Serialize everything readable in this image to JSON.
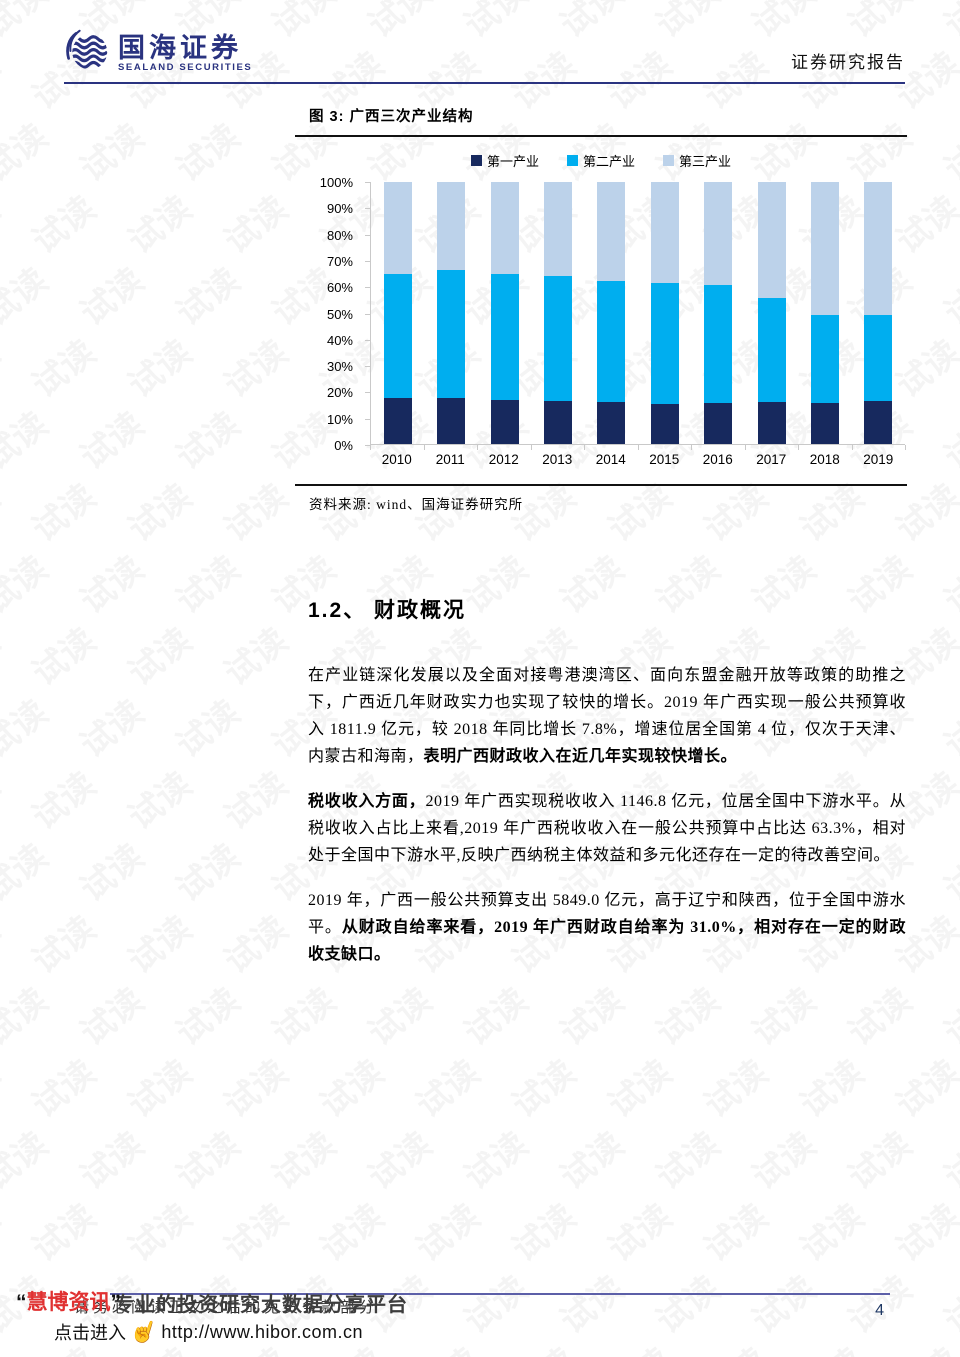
{
  "watermark": {
    "text": "试读"
  },
  "header": {
    "brand_cn": "国海证券",
    "brand_en": "SEALAND SECURITIES",
    "report_type": "证券研究报告"
  },
  "figure": {
    "title": "图 3: 广西三次产业结构",
    "source": "资料来源: wind、国海证券研究所"
  },
  "chart_data": {
    "type": "bar",
    "stacked": true,
    "unit": "percent",
    "title": "广西三次产业结构",
    "categories": [
      "2010",
      "2011",
      "2012",
      "2013",
      "2014",
      "2015",
      "2016",
      "2017",
      "2018",
      "2019"
    ],
    "series": [
      {
        "name": "第一产业",
        "color": "#17295E",
        "values": [
          17.5,
          17.5,
          16.7,
          16.5,
          16.0,
          15.3,
          15.5,
          16.0,
          15.8,
          16.3
        ]
      },
      {
        "name": "第二产业",
        "color": "#00AEEF",
        "values": [
          47.4,
          48.8,
          48.1,
          47.8,
          46.4,
          46.1,
          45.1,
          39.9,
          33.4,
          32.9
        ]
      },
      {
        "name": "第三产业",
        "color": "#BCD2EA",
        "values": [
          35.1,
          33.7,
          35.2,
          35.7,
          37.6,
          38.6,
          39.4,
          44.1,
          50.8,
          50.8
        ]
      }
    ],
    "ylim": [
      0,
      100
    ],
    "yticks": [
      "100%",
      "90%",
      "80%",
      "70%",
      "60%",
      "50%",
      "40%",
      "30%",
      "20%",
      "10%",
      "0%"
    ],
    "grid": false,
    "legend_position": "top"
  },
  "section": {
    "heading": "1.2、 财政概况"
  },
  "paragraphs": [
    {
      "segments": [
        {
          "bold": false,
          "text": "在产业链深化发展以及全面对接粤港澳湾区、面向东盟金融开放等政策的助推之下，广西近几年财政实力也实现了较快的增长。2019 年广西实现一般公共预算收入 1811.9 亿元，较 2018 年同比增长 7.8%，增速位居全国第 4 位，仅次于天津、内蒙古和海南，"
        },
        {
          "bold": true,
          "text": "表明广西财政收入在近几年实现较快增长。"
        }
      ]
    },
    {
      "segments": [
        {
          "bold": true,
          "text": "税收收入方面，"
        },
        {
          "bold": false,
          "text": "2019 年广西实现税收收入 1146.8 亿元，位居全国中下游水平。从税收收入占比上来看,2019 年广西税收收入在一般公共预算中占比达 63.3%，相对处于全国中下游水平,反映广西纳税主体效益和多元化还存在一定的待改善空间。"
        }
      ]
    },
    {
      "segments": [
        {
          "bold": false,
          "text": "2019 年，广西一般公共预算支出 5849.0 亿元，高于辽宁和陕西，位于全国中游水平。"
        },
        {
          "bold": true,
          "text": "从财政自给率来看，2019 年广西财政自给率为 31.0%，相对存在一定的财政收支缺口。"
        }
      ]
    }
  ],
  "footer": {
    "brand_quote_open": "“",
    "brand": "慧博资讯",
    "brand_quote_close": "”",
    "tagline": "专业的投资研究大数据分享平台",
    "disclaimer": "请务必阅读正文之后的免责条款部分",
    "cta": "点击进入",
    "url": "http://www.hibor.com.cn",
    "page_number": "4"
  }
}
